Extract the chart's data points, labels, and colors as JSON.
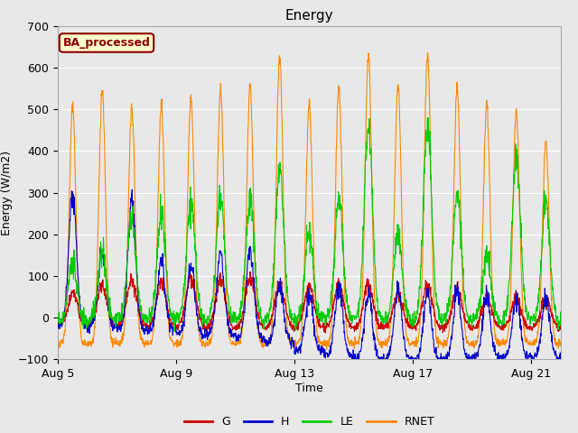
{
  "title": "Energy",
  "xlabel": "Time",
  "ylabel": "Energy (W/m2)",
  "ylim": [
    -100,
    700
  ],
  "yticks": [
    -100,
    0,
    100,
    200,
    300,
    400,
    500,
    600,
    700
  ],
  "background_color": "#e8e8e8",
  "plot_bg_color": "#e8e8e8",
  "annotation_text": "BA_processed",
  "annotation_box_color": "#ffffcc",
  "annotation_border_color": "#8B0000",
  "colors": {
    "G": "#cc0000",
    "H": "#0000cc",
    "LE": "#00cc00",
    "RNET": "#ff8800"
  },
  "legend_labels": [
    "G",
    "H",
    "LE",
    "RNET"
  ],
  "n_days": 18,
  "points_per_day": 96,
  "xtick_positions": [
    0,
    4,
    8,
    12,
    16
  ],
  "xtick_labels": [
    "Aug 5",
    "Aug 9",
    "Aug 13",
    "Aug 17",
    "Aug 21"
  ],
  "title_fontsize": 11,
  "label_fontsize": 9,
  "tick_fontsize": 9,
  "linewidth": 0.8
}
